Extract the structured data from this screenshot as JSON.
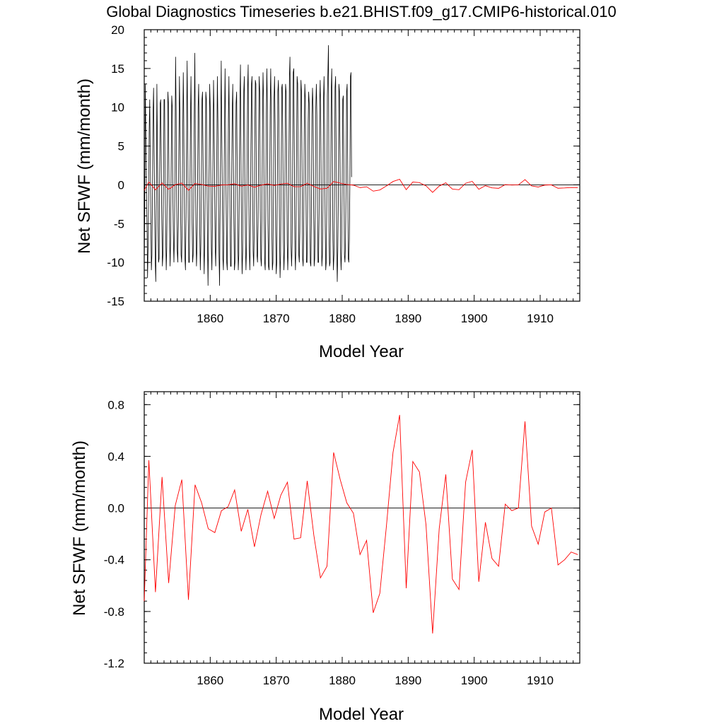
{
  "title": "Global Diagnostics Timeseries b.e21.BHIST.f09_g17.CMIP6-historical.010",
  "chart_data": [
    {
      "type": "line",
      "ylabel": "Net SFWF (mm/month)",
      "xlabel": "Model Year",
      "xlim": [
        1850,
        1916
      ],
      "ylim": [
        -15,
        20
      ],
      "xticks": [
        1860,
        1870,
        1880,
        1890,
        1900,
        1910
      ],
      "xtick_labels": [
        "1860",
        "1870",
        "1880",
        "1890",
        "1900",
        "1910"
      ],
      "yticks": [
        -15,
        -10,
        -5,
        0,
        5,
        10,
        15,
        20
      ],
      "ytick_labels": [
        "-15",
        "-10",
        "-5",
        "0",
        "5",
        "10",
        "15",
        "20"
      ],
      "zero_line": true,
      "series": [
        {
          "kind": "monthly",
          "color": "#000000",
          "x_start": 1850.0,
          "x_step": 0.0833333,
          "values": [
            -10.5,
            -3.0,
            13.0,
            6.0,
            0.5,
            -5.0,
            -12.0,
            -8.0,
            -2.0,
            7.0,
            11.0,
            3.0,
            -4.0,
            -11.0,
            -9.0,
            -1.0,
            9.0,
            12.5,
            4.0,
            -3.0,
            -10.0,
            -12.5,
            -2.0,
            13.0,
            5.0,
            -4.0,
            -10.0,
            -9.5,
            1.0,
            10.5,
            11.0,
            2.0,
            -5.0,
            -10.5,
            -9.0,
            0.0,
            11.0,
            11.0,
            1.0,
            -6.0,
            -11.0,
            -8.0,
            1.0,
            12.0,
            10.5,
            0.0,
            -6.0,
            -10.5,
            -7.0,
            2.5,
            11.5,
            10.0,
            -1.0,
            -7.0,
            -10.0,
            -6.0,
            4.0,
            16.5,
            9.5,
            -2.0,
            -8.5,
            -10.0,
            -5.0,
            5.0,
            14.0,
            8.5,
            -2.5,
            -9.0,
            -10.0,
            -5.0,
            6.0,
            14.5,
            8.0,
            -3.5,
            -9.5,
            -11.0,
            -4.0,
            7.0,
            16.0,
            7.0,
            -4.0,
            -10.0,
            -10.0,
            -3.0,
            8.0,
            14.0,
            6.0,
            -5.0,
            -10.0,
            -9.0,
            -2.0,
            9.0,
            17.0,
            5.0,
            -5.5,
            -10.5,
            -8.0,
            -1.0,
            10.0,
            13.0,
            4.0,
            -6.0,
            -11.0,
            -7.5,
            0.5,
            11.0,
            12.0,
            3.0,
            -6.5,
            -11.5,
            -7.0,
            1.5,
            12.0,
            11.0,
            2.0,
            -7.0,
            -13.0,
            -6.0,
            2.5,
            13.0,
            10.0,
            1.0,
            -8.0,
            -11.0,
            -5.0,
            3.5,
            13.5,
            9.0,
            0.0,
            -8.0,
            -10.5,
            -4.0,
            5.0,
            14.0,
            8.0,
            -1.0,
            -9.0,
            -13.0,
            -3.0,
            6.0,
            16.0,
            7.0,
            -2.0,
            -9.5,
            -11.0,
            -2.0,
            7.5,
            15.0,
            6.0,
            -3.0,
            -10.0,
            -11.0,
            -1.0,
            8.5,
            14.0,
            5.0,
            -4.0,
            -10.5,
            -10.5,
            0.0,
            9.5,
            13.0,
            4.0,
            -5.0,
            -11.0,
            -10.0,
            1.0,
            10.5,
            12.0,
            3.0,
            -6.0,
            -11.0,
            -9.0,
            2.0,
            11.0,
            15.5,
            2.0,
            -7.0,
            -11.5,
            -8.5,
            3.0,
            12.0,
            14.0,
            1.0,
            -7.5,
            -11.0,
            -8.0,
            4.0,
            12.5,
            15.5,
            0.0,
            -8.0,
            -11.0,
            -7.0,
            5.0,
            13.0,
            14.0,
            -1.0,
            -8.5,
            -10.5,
            -6.0,
            6.0,
            13.5,
            13.0,
            -2.0,
            -9.0,
            -10.0,
            -5.0,
            7.0,
            14.0,
            12.0,
            -3.0,
            -9.5,
            -10.5,
            -4.0,
            8.0,
            14.5,
            11.0,
            -4.0,
            -10.0,
            -11.0,
            -3.0,
            9.0,
            15.0,
            10.0,
            -5.0,
            -10.5,
            -11.0,
            -2.0,
            10.0,
            15.0,
            9.0,
            -5.5,
            -11.0,
            -10.0,
            -1.0,
            11.0,
            14.0,
            8.0,
            -6.0,
            -11.5,
            -10.0,
            0.0,
            12.0,
            13.5,
            7.0,
            -6.5,
            -12.0,
            -9.0,
            1.0,
            12.5,
            13.0,
            6.0,
            -7.0,
            -11.0,
            -8.5,
            2.0,
            13.0,
            12.0,
            5.0,
            -7.5,
            -11.0,
            -8.0,
            3.0,
            14.0,
            16.5,
            4.0,
            -8.0,
            -10.5,
            -7.5,
            4.0,
            14.5,
            15.0,
            3.0,
            -8.5,
            -11.0,
            -7.0,
            5.0,
            14.0,
            13.0,
            2.0,
            -9.0,
            -10.0,
            -6.0,
            6.0,
            13.5,
            12.0,
            1.0,
            -9.5,
            -10.5,
            -5.5,
            7.0,
            13.0,
            11.0,
            0.0,
            -10.0,
            -10.0,
            -5.0,
            8.0,
            12.0,
            10.5,
            -1.0,
            -10.0,
            -10.5,
            -4.5,
            9.0,
            12.5,
            10.0,
            -2.0,
            -10.5,
            -9.5,
            -4.0,
            10.0,
            13.0,
            9.0,
            -3.0,
            -10.0,
            -10.0,
            -3.5,
            10.5,
            13.5,
            8.0,
            -4.0,
            -10.5,
            -9.0,
            -3.0,
            11.0,
            14.0,
            7.0,
            -5.0,
            -11.0,
            -10.0,
            -2.5,
            11.5,
            14.5,
            18.0,
            -6.0,
            -10.5,
            -10.0,
            -2.0,
            12.0,
            15.0,
            6.0,
            -7.0,
            -11.0,
            -9.0,
            -1.5,
            12.5,
            14.0,
            5.0,
            -8.0,
            -12.5,
            -8.5,
            -1.0,
            13.0,
            12.0,
            4.0,
            -8.5,
            -11.0,
            -8.0,
            -0.5,
            11.0,
            11.5,
            3.0,
            -9.0,
            -10.0,
            -7.5,
            0.0,
            12.0,
            13.0,
            2.0,
            -9.5,
            -10.0,
            -7.0,
            0.5,
            14.0,
            14.5,
            1.0
          ]
        },
        {
          "kind": "annual-mean",
          "color": "#ff0000",
          "x": [
            1850,
            1850.7,
            1851.7,
            1852.7,
            1853.7,
            1854.7,
            1855.7,
            1856.7,
            1857.7,
            1858.7,
            1859.7,
            1860.7,
            1861.7,
            1862.7,
            1863.7,
            1864.7,
            1865.7,
            1866.7,
            1867.7,
            1868.7,
            1869.7,
            1870.7,
            1871.7,
            1872.7,
            1873.7,
            1874.7,
            1875.7,
            1876.7,
            1877.7,
            1878.7,
            1879.7,
            1880.7,
            1881.7,
            1882.7,
            1883.7,
            1884.7,
            1885.7,
            1886.7,
            1887.7,
            1888.7,
            1889.7,
            1890.7,
            1891.7,
            1892.7,
            1893.7,
            1894.7,
            1895.7,
            1896.7,
            1897.7,
            1898.7,
            1899.7,
            1900.7,
            1901.7,
            1902.7,
            1903.7,
            1904.7,
            1905.7,
            1906.7,
            1907.7,
            1908.7,
            1909.7,
            1910.7,
            1911.7,
            1912.7,
            1913.7,
            1914.7,
            1915.7
          ],
          "values": [
            -0.72,
            0.37,
            -0.65,
            0.24,
            -0.58,
            0.02,
            0.22,
            -0.71,
            0.18,
            0.04,
            -0.16,
            -0.19,
            -0.02,
            0.01,
            0.14,
            -0.18,
            -0.01,
            -0.3,
            -0.05,
            0.13,
            -0.08,
            0.1,
            0.2,
            -0.24,
            -0.23,
            0.21,
            -0.21,
            -0.54,
            -0.45,
            0.43,
            0.22,
            0.04,
            -0.04,
            -0.36,
            -0.25,
            -0.81,
            -0.66,
            -0.14,
            0.43,
            0.72,
            -0.62,
            0.36,
            0.28,
            -0.13,
            -0.97,
            -0.16,
            0.26,
            -0.55,
            -0.63,
            0.2,
            0.45,
            -0.57,
            -0.11,
            -0.39,
            -0.45,
            0.03,
            -0.02,
            0.0,
            0.67,
            -0.14,
            -0.28,
            -0.03,
            0.0,
            -0.44,
            -0.4,
            -0.34,
            -0.36
          ]
        }
      ]
    },
    {
      "type": "line",
      "ylabel": "Net SFWF (mm/month)",
      "xlabel": "Model Year",
      "xlim": [
        1850,
        1916
      ],
      "ylim": [
        -1.2,
        0.9
      ],
      "xticks": [
        1860,
        1870,
        1880,
        1890,
        1900,
        1910
      ],
      "xtick_labels": [
        "1860",
        "1870",
        "1880",
        "1890",
        "1900",
        "1910"
      ],
      "yticks": [
        -1.2,
        -0.8,
        -0.4,
        0.0,
        0.4,
        0.8
      ],
      "ytick_labels": [
        "-1.2",
        "-0.8",
        "-0.4",
        "0.0",
        "0.4",
        "0.8"
      ],
      "zero_line": true,
      "series": [
        {
          "kind": "annual-mean",
          "color": "#ff0000",
          "x": [
            1850,
            1850.7,
            1851.7,
            1852.7,
            1853.7,
            1854.7,
            1855.7,
            1856.7,
            1857.7,
            1858.7,
            1859.7,
            1860.7,
            1861.7,
            1862.7,
            1863.7,
            1864.7,
            1865.7,
            1866.7,
            1867.7,
            1868.7,
            1869.7,
            1870.7,
            1871.7,
            1872.7,
            1873.7,
            1874.7,
            1875.7,
            1876.7,
            1877.7,
            1878.7,
            1879.7,
            1880.7,
            1881.7,
            1882.7,
            1883.7,
            1884.7,
            1885.7,
            1886.7,
            1887.7,
            1888.7,
            1889.7,
            1890.7,
            1891.7,
            1892.7,
            1893.7,
            1894.7,
            1895.7,
            1896.7,
            1897.7,
            1898.7,
            1899.7,
            1900.7,
            1901.7,
            1902.7,
            1903.7,
            1904.7,
            1905.7,
            1906.7,
            1907.7,
            1908.7,
            1909.7,
            1910.7,
            1911.7,
            1912.7,
            1913.7,
            1914.7,
            1915.7
          ],
          "values": [
            -0.72,
            0.37,
            -0.65,
            0.24,
            -0.58,
            0.02,
            0.22,
            -0.71,
            0.18,
            0.04,
            -0.16,
            -0.19,
            -0.02,
            0.01,
            0.14,
            -0.18,
            -0.01,
            -0.3,
            -0.05,
            0.13,
            -0.08,
            0.1,
            0.2,
            -0.24,
            -0.23,
            0.21,
            -0.21,
            -0.54,
            -0.45,
            0.43,
            0.22,
            0.04,
            -0.04,
            -0.36,
            -0.25,
            -0.81,
            -0.66,
            -0.14,
            0.43,
            0.72,
            -0.62,
            0.36,
            0.28,
            -0.13,
            -0.97,
            -0.16,
            0.26,
            -0.55,
            -0.63,
            0.2,
            0.45,
            -0.57,
            -0.11,
            -0.39,
            -0.45,
            0.03,
            -0.02,
            0.0,
            0.67,
            -0.14,
            -0.28,
            -0.03,
            0.0,
            -0.44,
            -0.4,
            -0.34,
            -0.36
          ]
        }
      ]
    }
  ]
}
